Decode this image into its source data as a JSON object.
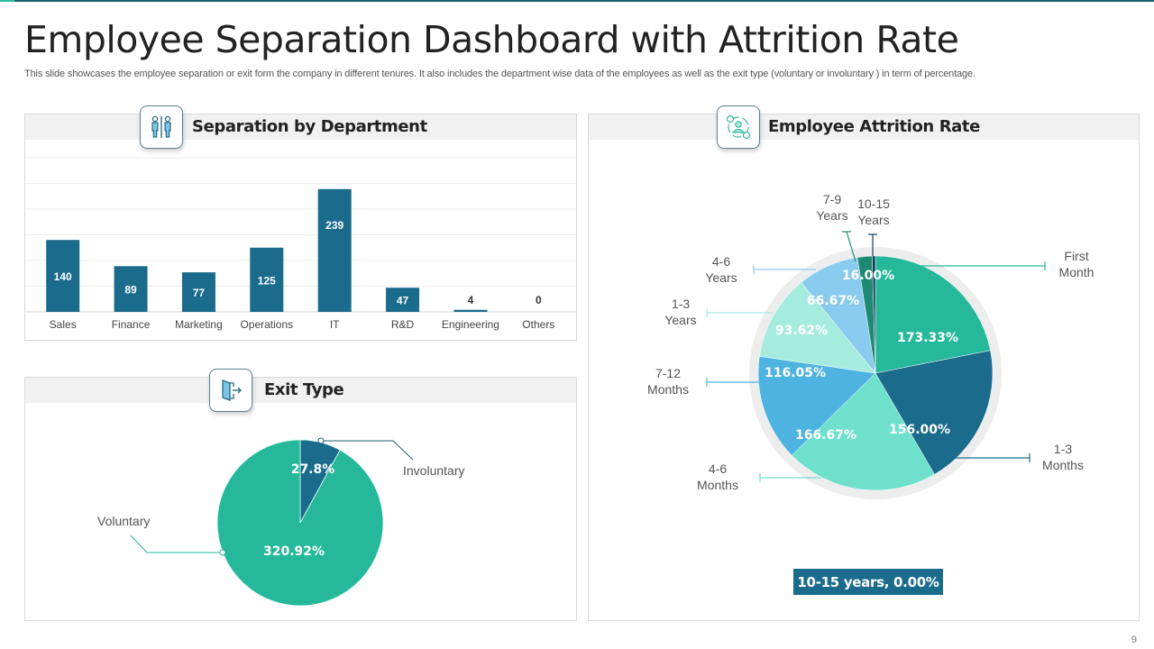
{
  "slide": {
    "title": "Employee Separation Dashboard with Attrition Rate",
    "subtitle": "This slide showcases the employee separation or exit   form the company in different tenures. It also includes the department wise data of the employees as well as the exit type  (voluntary or involuntary ) in term of percentage.",
    "page_number": "9",
    "accent_color": "#1e5f74",
    "accent_color_2": "#2bbf9f"
  },
  "panels": {
    "department": {
      "title": "Separation by Department",
      "icon": "restroom-people-icon"
    },
    "exit_type": {
      "title": "Exit Type",
      "icon": "exit-door-icon"
    },
    "attrition": {
      "title": "Employee Attrition Rate",
      "icon": "people-cycle-icon"
    }
  },
  "selected_point_label": "10-15 years, 0.00%",
  "chart_data": [
    {
      "id": "separation_by_department",
      "type": "bar",
      "title": "Separation by Department",
      "categories": [
        "Sales",
        "Finance",
        "Marketing",
        "Operations",
        "IT",
        "R&D",
        "Engineering",
        "Others"
      ],
      "values": [
        140,
        89,
        77,
        125,
        239,
        47,
        4,
        0
      ],
      "xlabel": "",
      "ylabel": "",
      "ylim": [
        0,
        300
      ],
      "grid": true,
      "grid_step": 50,
      "data_labels": true,
      "color": "#1a6b8c"
    },
    {
      "id": "exit_type",
      "type": "pie",
      "title": "Exit Type",
      "categories": [
        "Involuntary",
        "Voluntary"
      ],
      "values": [
        27.8,
        320.92
      ],
      "value_labels": [
        "27.8%",
        "320.92%"
      ],
      "colors": [
        "#1a6b8c",
        "#26b89a"
      ],
      "start_angle": "12 o'clock, clockwise"
    },
    {
      "id": "employee_attrition_rate",
      "type": "pie",
      "title": "Employee Attrition Rate",
      "categories": [
        "First Month",
        "1-3 Months",
        "4-6 Months",
        "7-12 Months",
        "1-3 Years",
        "4-6 Years",
        "7-9 Years",
        "10-15 Years"
      ],
      "callout_labels": [
        [
          "First",
          "Month"
        ],
        [
          "1-3",
          "Months"
        ],
        [
          "4-6",
          "Months"
        ],
        [
          "7-12",
          "Months"
        ],
        [
          "1-3",
          "Years"
        ],
        [
          "4-6",
          "Years"
        ],
        [
          "7-9",
          "Years"
        ],
        [
          "10-15",
          "Years"
        ]
      ],
      "values": [
        173.33,
        156.0,
        166.67,
        116.05,
        93.62,
        66.67,
        16.0,
        0.0
      ],
      "value_labels": [
        "173.33%",
        "156.00%",
        "166.67%",
        "116.05%",
        "93.62%",
        "66.67%",
        "16.00%",
        ""
      ],
      "colors": [
        "#26b89a",
        "#1a6b8c",
        "#6ee0cc",
        "#4eb3e0",
        "#a5ecdf",
        "#89cbee",
        "#1f8a74",
        "#123f5a"
      ],
      "start_angle": "12 o'clock, clockwise"
    }
  ]
}
